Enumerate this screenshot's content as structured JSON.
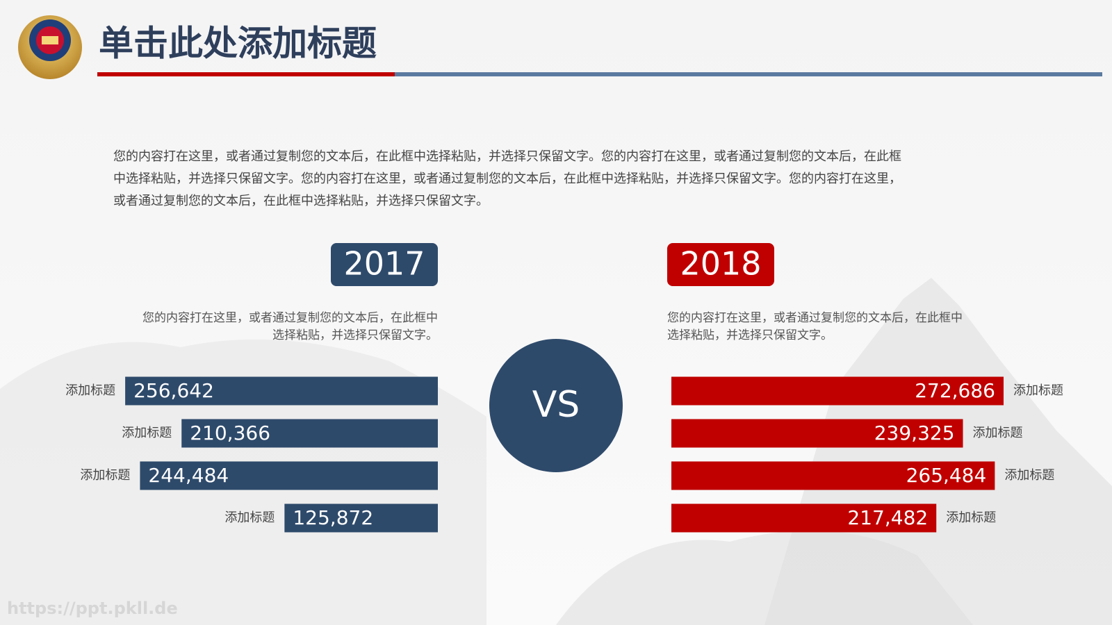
{
  "header": {
    "title": "单击此处添加标题"
  },
  "intro": [
    "您的内容打在这里，或者通过复制您的文本后，在此框中选择粘贴，并选择只保留文字。您的内容打在这里，或者通过复制您的文本后，在此框",
    "中选择粘贴，并选择只保留文字。您的内容打在这里，或者通过复制您的文本后，在此框中选择粘贴，并选择只保留文字。您的内容打在这里，",
    "或者通过复制您的文本后，在此框中选择粘贴，并选择只保留文字。"
  ],
  "versus": "VS",
  "watermark": "https://ppt.pkll.de",
  "chart_data": [
    {
      "type": "bar",
      "orientation": "horizontal",
      "title": "2017",
      "description": [
        "您的内容打在这里，或者通过复制您的文本后，在此框中",
        "选择粘贴，并选择只保留文字。"
      ],
      "categories": [
        "添加标题",
        "添加标题",
        "添加标题",
        "添加标题"
      ],
      "values": [
        256642,
        210366,
        244484,
        125872
      ],
      "value_labels": [
        "256,642",
        "210,366",
        "244,484",
        "125,872"
      ],
      "color": "#2e4a6b"
    },
    {
      "type": "bar",
      "orientation": "horizontal",
      "title": "2018",
      "description": [
        "您的内容打在这里，或者通过复制您的文本后，在此框中",
        "选择粘贴，并选择只保留文字。"
      ],
      "categories": [
        "添加标题",
        "添加标题",
        "添加标题",
        "添加标题"
      ],
      "values": [
        272686,
        239325,
        265484,
        217482
      ],
      "value_labels": [
        "272,686",
        "239,325",
        "265,484",
        "217,482"
      ],
      "color": "#c00000"
    }
  ]
}
